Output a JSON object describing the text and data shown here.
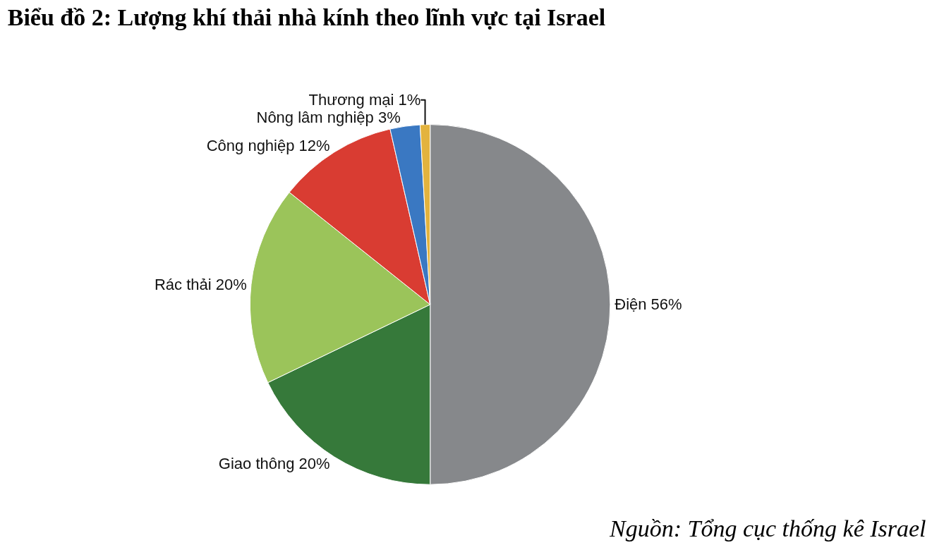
{
  "chart_data": {
    "type": "pie",
    "title": "Biểu đồ 2: Lượng khí thải nhà kính theo lĩnh vực tại Israel",
    "categories": [
      "Điện",
      "Giao thông",
      "Rác thải",
      "Công nghiệp",
      "Nông lâm nghiệp",
      "Thương mại"
    ],
    "values": [
      56,
      20,
      20,
      12,
      3,
      1
    ],
    "value_labels": [
      "56%",
      "20%",
      "20%",
      "12%",
      "3%",
      "1%"
    ],
    "colors": [
      "#86888b",
      "#36793a",
      "#9bc45a",
      "#d93c32",
      "#3a78c2",
      "#e3b33e"
    ],
    "annotations": [
      "Nguồn: Tổng cục thống kê Israel"
    ],
    "legend": false
  }
}
